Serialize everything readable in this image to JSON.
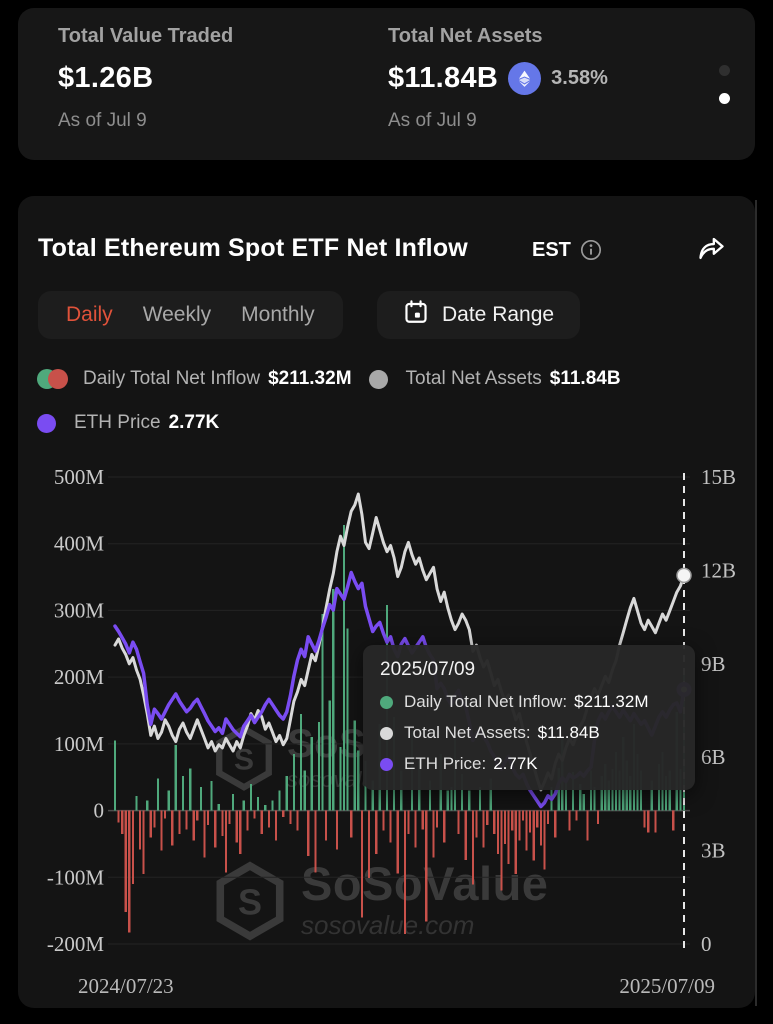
{
  "colors": {
    "accent_red": "#e0523a",
    "bar_green": "#4fa97c",
    "bar_red": "#c8514a",
    "line_gray": "#d9d9d9",
    "line_purple": "#7a4cf2",
    "eth_icon": "#6577e8",
    "watermark": "#3a3a3a"
  },
  "stats_carousel": {
    "items": [
      {
        "label": "Total Value Traded",
        "value": "$1.26B",
        "as_of": "As of Jul 9"
      },
      {
        "label": "Total Net Assets",
        "value": "$11.84B",
        "change": "3.58%",
        "as_of": "As of Jul 9"
      }
    ],
    "pages": 2,
    "active_page": 2
  },
  "header": {
    "title": "Total Ethereum Spot ETF Net Inflow",
    "timezone": "EST"
  },
  "tabs": {
    "items": [
      "Daily",
      "Weekly",
      "Monthly"
    ],
    "active": "Daily",
    "date_range_label": "Date Range"
  },
  "legend": [
    {
      "label": "Daily Total Net Inflow",
      "value": "$211.32M"
    },
    {
      "label": "Total Net Assets",
      "value": "$11.84B"
    },
    {
      "label": "ETH Price",
      "value": "2.77K"
    }
  ],
  "tooltip": {
    "date": "2025/07/09",
    "rows": [
      {
        "color": "bar_green",
        "label": "Daily Total Net Inflow:",
        "value": "$211.32M"
      },
      {
        "color": "line_gray",
        "label": "Total Net Assets:",
        "value": "$11.84B"
      },
      {
        "color": "line_purple",
        "label": "ETH Price:",
        "value": "2.77K"
      }
    ]
  },
  "watermark": {
    "name": "SoSoValue",
    "domain": "sosovalue.com"
  },
  "chart_data": {
    "type": "combo (bar + 2 lines)",
    "title": "Total Ethereum Spot ETF Net Inflow",
    "x_axis": {
      "labels": [
        "2024/07/23",
        "2025/07/09"
      ]
    },
    "y_axis_left": {
      "unit": "USD M",
      "min": -200,
      "max": 500,
      "ticks": [
        {
          "value": 500,
          "label": "500M"
        },
        {
          "value": 400,
          "label": "400M"
        },
        {
          "value": 300,
          "label": "300M"
        },
        {
          "value": 200,
          "label": "200M"
        },
        {
          "value": 100,
          "label": "100M"
        },
        {
          "value": 0,
          "label": "0"
        },
        {
          "value": -100,
          "label": "-100M"
        },
        {
          "value": -200,
          "label": "-200M"
        }
      ]
    },
    "y_axis_right": {
      "unit": "USD B",
      "min": 0,
      "max": 15,
      "ticks": [
        {
          "value": 15,
          "label": "15B"
        },
        {
          "value": 12,
          "label": "12B"
        },
        {
          "value": 9,
          "label": "9B"
        },
        {
          "value": 6,
          "label": "6B"
        },
        {
          "value": 3,
          "label": "3B"
        },
        {
          "value": 0,
          "label": "0"
        }
      ]
    },
    "eth_axis": {
      "unit": "USD K",
      "min": -0.08,
      "max": 5.15,
      "visible": false
    },
    "legend_position": "top",
    "grid": "horizontal only, zero-line emphasized",
    "cursor": {
      "date": "2025/07/09",
      "daily_net_inflow_m": 211.32,
      "total_net_assets_b": 11.84,
      "eth_price_k": 2.77
    },
    "series_bars": {
      "name": "Daily Total Net Inflow (M USD)",
      "values": [
        105,
        -18,
        -35,
        -152,
        -183,
        -110,
        22,
        -58,
        -95,
        15,
        -40,
        -25,
        48,
        -60,
        -12,
        30,
        -52,
        98,
        -35,
        52,
        -28,
        63,
        -45,
        -15,
        35,
        -70,
        -22,
        44,
        -55,
        10,
        -38,
        -93,
        -20,
        25,
        -48,
        -65,
        15,
        -30,
        40,
        -12,
        20,
        -35,
        8,
        -25,
        15,
        -45,
        30,
        -10,
        52,
        -20,
        85,
        -30,
        145,
        60,
        -68,
        110,
        -93,
        133,
        295,
        -45,
        165,
        332,
        -58,
        95,
        428,
        273,
        -40,
        135,
        90,
        -160,
        74,
        -101,
        45,
        -65,
        130,
        -30,
        308,
        -48,
        140,
        -94,
        60,
        -185,
        -35,
        120,
        -55,
        75,
        -28,
        -166,
        45,
        -70,
        -25,
        85,
        -48,
        30,
        35,
        110,
        -35,
        55,
        -74,
        30,
        -111,
        -40,
        35,
        -55,
        -22,
        48,
        -35,
        -65,
        -120,
        -50,
        -80,
        -30,
        -95,
        -45,
        -15,
        -60,
        -33,
        -75,
        -25,
        -52,
        -88,
        -20,
        35,
        -40,
        64,
        110,
        45,
        -30,
        58,
        -15,
        40,
        25,
        -45,
        60,
        35,
        -20,
        52,
        70,
        45,
        62,
        88,
        60,
        110,
        75,
        52,
        130,
        85,
        60,
        -25,
        -33,
        45,
        -33,
        70,
        88,
        52,
        60,
        -30,
        148,
        62,
        211.32
      ]
    },
    "series_net_assets": {
      "name": "Total Net Assets (B USD)",
      "values": [
        9.6,
        9.8,
        9.5,
        9.3,
        9.0,
        9.2,
        8.8,
        8.5,
        8.0,
        7.4,
        6.7,
        7.0,
        6.6,
        6.8,
        7.2,
        7.0,
        6.7,
        6.5,
        6.9,
        7.1,
        6.8,
        6.6,
        6.9,
        7.2,
        6.9,
        6.6,
        6.3,
        6.5,
        6.2,
        6.4,
        6.3,
        6.6,
        6.4,
        6.2,
        6.5,
        6.3,
        6.7,
        7.0,
        7.4,
        7.2,
        7.5,
        7.3,
        6.9,
        7.1,
        6.8,
        6.5,
        6.7,
        6.4,
        6.6,
        7.2,
        7.8,
        8.1,
        8.5,
        8.3,
        8.8,
        9.3,
        9.1,
        9.6,
        10.2,
        10.8,
        11.4,
        11.9,
        12.6,
        13.1,
        12.8,
        13.4,
        13.9,
        14.1,
        14.45,
        13.8,
        12.9,
        12.7,
        13.2,
        13.7,
        13.3,
        12.9,
        12.6,
        12.8,
        12.4,
        11.8,
        12.1,
        12.6,
        12.9,
        12.5,
        12.2,
        12.4,
        12.0,
        11.7,
        11.9,
        12.1,
        11.4,
        11.0,
        11.3,
        10.8,
        10.4,
        10.1,
        10.3,
        10.6,
        10.4,
        10.1,
        9.4,
        9.6,
        9.2,
        8.9,
        9.1,
        8.7,
        8.3,
        8.5,
        8.1,
        7.8,
        8.0,
        7.6,
        7.2,
        7.4,
        6.9,
        6.5,
        6.1,
        5.7,
        5.3,
        4.95,
        5.2,
        5.5,
        5.3,
        5.8,
        6.1,
        5.9,
        6.3,
        6.6,
        6.4,
        6.7,
        7.0,
        7.2,
        7.6,
        7.9,
        8.2,
        8.0,
        8.3,
        8.6,
        8.4,
        8.8,
        9.1,
        9.6,
        10.0,
        10.4,
        10.8,
        11.1,
        10.7,
        10.3,
        10.1,
        10.4,
        10.2,
        10.0,
        10.3,
        10.6,
        10.4,
        10.7,
        11.0,
        11.3,
        11.5,
        11.84
      ]
    },
    "series_eth_price": {
      "name": "ETH Price (K USD)",
      "values": [
        3.48,
        3.42,
        3.35,
        3.28,
        3.18,
        3.3,
        3.22,
        3.08,
        2.95,
        2.6,
        2.38,
        2.55,
        2.5,
        2.44,
        2.52,
        2.6,
        2.66,
        2.72,
        2.64,
        2.58,
        2.52,
        2.56,
        2.62,
        2.66,
        2.58,
        2.5,
        2.42,
        2.36,
        2.3,
        2.34,
        2.28,
        2.44,
        2.38,
        2.32,
        2.28,
        2.24,
        2.36,
        2.42,
        2.48,
        2.4,
        2.46,
        2.52,
        2.6,
        2.66,
        2.6,
        2.54,
        2.48,
        2.44,
        2.52,
        2.7,
        2.92,
        3.1,
        3.22,
        3.14,
        3.36,
        3.28,
        3.2,
        3.32,
        3.46,
        3.58,
        3.72,
        3.66,
        3.9,
        3.84,
        3.78,
        3.92,
        4.08,
        3.98,
        3.9,
        3.96,
        3.7,
        3.56,
        3.42,
        3.48,
        3.52,
        3.4,
        3.3,
        3.36,
        3.22,
        3.14,
        3.28,
        3.34,
        3.26,
        3.18,
        3.24,
        3.3,
        3.36,
        3.24,
        3.16,
        3.1,
        2.78,
        2.84,
        2.78,
        2.66,
        2.6,
        2.7,
        2.76,
        2.64,
        2.58,
        2.4,
        2.2,
        2.28,
        2.32,
        2.24,
        2.18,
        2.08,
        2.02,
        1.92,
        1.88,
        1.96,
        2.02,
        1.9,
        1.82,
        1.78,
        1.82,
        1.72,
        1.64,
        1.58,
        1.52,
        1.46,
        1.5,
        1.58,
        1.54,
        1.6,
        1.72,
        1.78,
        1.74,
        1.82,
        1.78,
        1.8,
        1.84,
        1.8,
        1.86,
        1.9,
        2.2,
        2.42,
        2.5,
        2.44,
        2.52,
        2.58,
        2.52,
        2.46,
        2.54,
        2.48,
        2.42,
        2.5,
        2.44,
        2.38,
        2.42,
        2.34,
        2.26,
        2.36,
        2.46,
        2.52,
        2.46,
        2.54,
        2.6,
        2.62,
        2.52,
        2.77
      ]
    }
  }
}
